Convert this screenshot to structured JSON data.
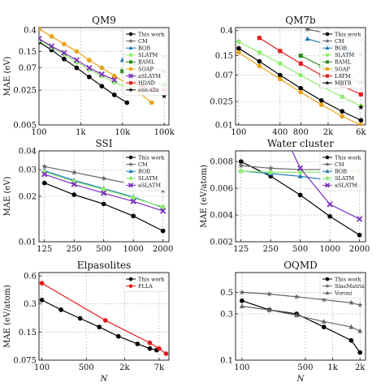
{
  "figure": {
    "shared_xlabel": "N"
  },
  "chart_data": [
    {
      "type": "line",
      "title": "QM9",
      "ylabel": "MAE (eV)",
      "xscale": "log",
      "yscale": "log",
      "xlim": [
        100,
        130000
      ],
      "ylim": [
        0.005,
        0.45
      ],
      "xticks": [
        {
          "v": 100,
          "label": "100"
        },
        {
          "v": 1000,
          "label": "1k"
        },
        {
          "v": 10000,
          "label": "10k"
        },
        {
          "v": 100000,
          "label": "100k"
        }
      ],
      "yticks": [
        {
          "v": 0.005,
          "label": "0.005"
        },
        {
          "v": 0.025,
          "label": "0.025"
        },
        {
          "v": 0.07,
          "label": "0.07"
        },
        {
          "v": 0.15,
          "label": "0.15"
        },
        {
          "v": 0.4,
          "label": "0.4"
        }
      ],
      "grid": true,
      "legend_position": "top-right",
      "series": [
        {
          "name": "This work",
          "color": "#000000",
          "marker": "circle",
          "x": [
            100,
            200,
            400,
            800,
            1600,
            3200,
            6400,
            12800
          ],
          "y": [
            0.23,
            0.16,
            0.105,
            0.07,
            0.046,
            0.03,
            0.02,
            0.014
          ]
        },
        {
          "name": "CM",
          "color": "#666666",
          "marker": "star",
          "x": [
            20000,
            50000,
            100000
          ],
          "y": [
            0.18,
            0.14,
            0.12
          ]
        },
        {
          "name": "BOB",
          "color": "#1f77b4",
          "marker": "triangle",
          "x": [
            10000,
            20000,
            50000,
            100000
          ],
          "y": [
            0.1,
            0.085,
            0.07,
            0.06
          ]
        },
        {
          "name": "SLATM",
          "color": "#90ee70",
          "marker": "circle",
          "x": [
            100,
            200,
            400,
            800,
            1600,
            3200,
            6400,
            12800
          ],
          "y": [
            0.25,
            0.18,
            0.13,
            0.09,
            0.065,
            0.048,
            0.036,
            0.028
          ]
        },
        {
          "name": "BAML",
          "color": "#2e8b22",
          "marker": "square",
          "x": [
            10000,
            20000,
            50000,
            100000
          ],
          "y": [
            0.06,
            0.048,
            0.038,
            0.032
          ]
        },
        {
          "name": "SOAP",
          "color": "#e8a317",
          "marker": "circle",
          "x": [
            100,
            200,
            400,
            800,
            1600,
            3200,
            6400,
            12800,
            25600,
            50000
          ],
          "y": [
            0.42,
            0.3,
            0.21,
            0.15,
            0.1,
            0.07,
            0.048,
            0.034,
            0.022,
            0.014
          ]
        },
        {
          "name": "aSLATM",
          "color": "#7b2fbe",
          "marker": "cross",
          "x": [
            100,
            200,
            400,
            800,
            1600,
            3200,
            6400
          ],
          "y": [
            0.27,
            0.19,
            0.14,
            0.1,
            0.07,
            0.052,
            0.04
          ]
        },
        {
          "name": "HDAD",
          "color": "#e31a1c",
          "marker": "square",
          "x": [
            20000,
            30000,
            50000,
            70000,
            100000
          ],
          "y": [
            0.035,
            0.03,
            0.026,
            0.025,
            0.025
          ]
        },
        {
          "name": "enn-s2s",
          "color": "#000000",
          "marker": "star",
          "x": [
            100000
          ],
          "y": [
            0.019
          ]
        }
      ]
    },
    {
      "type": "line",
      "title": "QM7b",
      "ylabel": "",
      "xscale": "log",
      "yscale": "log",
      "xlim": [
        90,
        7000
      ],
      "ylim": [
        0.01,
        0.45
      ],
      "xticks": [
        {
          "v": 100,
          "label": "100"
        },
        {
          "v": 400,
          "label": "400"
        },
        {
          "v": 800,
          "label": "800"
        },
        {
          "v": 2000,
          "label": "2k"
        },
        {
          "v": 6000,
          "label": "6k"
        }
      ],
      "yticks": [
        {
          "v": 0.01,
          "label": "0.01"
        },
        {
          "v": 0.025,
          "label": "0.025"
        },
        {
          "v": 0.07,
          "label": "0.07"
        },
        {
          "v": 0.15,
          "label": "0.15"
        },
        {
          "v": 0.4,
          "label": "0.4"
        }
      ],
      "grid": true,
      "legend_position": "top-right",
      "series": [
        {
          "name": "This work",
          "color": "#000000",
          "marker": "circle",
          "x": [
            100,
            200,
            400,
            800,
            1600,
            3200,
            6000
          ],
          "y": [
            0.2,
            0.12,
            0.07,
            0.042,
            0.026,
            0.017,
            0.012
          ]
        },
        {
          "name": "CM",
          "color": "#666666",
          "marker": "star",
          "x": [
            1000,
            2000,
            4000,
            6000
          ],
          "y": [
            0.42,
            0.36,
            0.31,
            0.28
          ]
        },
        {
          "name": "BOB",
          "color": "#1f77b4",
          "marker": "triangle",
          "x": [
            1000,
            2000,
            4000,
            6000
          ],
          "y": [
            0.29,
            0.23,
            0.18,
            0.16
          ]
        },
        {
          "name": "SLATM",
          "color": "#90ee70",
          "marker": "circle",
          "x": [
            100,
            200,
            400,
            800,
            1600,
            3200,
            6000
          ],
          "y": [
            0.26,
            0.17,
            0.11,
            0.07,
            0.045,
            0.03,
            0.021
          ]
        },
        {
          "name": "BAML",
          "color": "#2e8b22",
          "marker": "square",
          "x": [
            800,
            1600,
            3200,
            6000
          ],
          "y": [
            0.15,
            0.1,
            0.07,
            0.052
          ]
        },
        {
          "name": "SOAP",
          "color": "#e8a317",
          "marker": "circle",
          "x": [
            100,
            200,
            400,
            800,
            1600,
            3200,
            6000
          ],
          "y": [
            0.17,
            0.1,
            0.06,
            0.036,
            0.022,
            0.014,
            0.01
          ]
        },
        {
          "name": "LATM",
          "color": "#e31a1c",
          "marker": "square",
          "x": [
            200,
            400,
            800,
            1600,
            3200,
            6000
          ],
          "y": [
            0.3,
            0.18,
            0.11,
            0.07,
            0.046,
            0.033
          ]
        },
        {
          "name": "MBTR",
          "color": "#000000",
          "marker": "star",
          "x": [
            6000
          ],
          "y": [
            0.02
          ]
        }
      ]
    },
    {
      "type": "line",
      "title": "SSI",
      "ylabel": "MAE (eV)",
      "xscale": "log",
      "yscale": "log",
      "xlim": [
        110,
        2300
      ],
      "ylim": [
        0.01,
        0.04
      ],
      "xticks": [
        {
          "v": 125,
          "label": "125"
        },
        {
          "v": 250,
          "label": "250"
        },
        {
          "v": 500,
          "label": "500"
        },
        {
          "v": 1000,
          "label": "1000"
        },
        {
          "v": 2000,
          "label": "2000"
        }
      ],
      "yticks": [
        {
          "v": 0.01,
          "label": "0.01"
        },
        {
          "v": 0.02,
          "label": "0.02"
        },
        {
          "v": 0.03,
          "label": "0.03"
        },
        {
          "v": 0.04,
          "label": "0.04"
        }
      ],
      "grid": true,
      "legend_position": "top-right",
      "series": [
        {
          "name": "This work",
          "color": "#000000",
          "marker": "circle",
          "x": [
            125,
            250,
            500,
            1000,
            2000
          ],
          "y": [
            0.0245,
            0.0205,
            0.0178,
            0.0148,
            0.0118
          ]
        },
        {
          "name": "CM",
          "color": "#666666",
          "marker": "star",
          "x": [
            125,
            250,
            500,
            1000,
            2000
          ],
          "y": [
            0.0315,
            0.0288,
            0.0263,
            0.024,
            0.0218
          ]
        },
        {
          "name": "BOB",
          "color": "#1f77b4",
          "marker": "triangle",
          "x": [
            125,
            250,
            500,
            1000,
            2000
          ],
          "y": [
            0.0295,
            0.0255,
            0.0225,
            0.0198,
            0.0168
          ]
        },
        {
          "name": "SLATM",
          "color": "#90ee70",
          "marker": "circle",
          "x": [
            125,
            250,
            500,
            1000,
            2000
          ],
          "y": [
            0.029,
            0.025,
            0.0222,
            0.0195,
            0.017
          ]
        },
        {
          "name": "aSLATM",
          "color": "#7b2fbe",
          "marker": "cross",
          "x": [
            125,
            250,
            500,
            1000,
            2000
          ],
          "y": [
            0.028,
            0.024,
            0.021,
            0.0185,
            0.016
          ]
        }
      ]
    },
    {
      "type": "line",
      "title": "Water cluster",
      "ylabel": "MAE (eV/atom)",
      "xscale": "log",
      "yscale": "linear",
      "xlim": [
        110,
        2300
      ],
      "ylim": [
        0.002,
        0.0088
      ],
      "xticks": [
        {
          "v": 125,
          "label": "125"
        },
        {
          "v": 250,
          "label": "250"
        },
        {
          "v": 500,
          "label": "500"
        },
        {
          "v": 1000,
          "label": "1000"
        },
        {
          "v": 2000,
          "label": "2000"
        }
      ],
      "yticks": [
        {
          "v": 0.002,
          "label": "0.002"
        },
        {
          "v": 0.004,
          "label": "0.004"
        },
        {
          "v": 0.006,
          "label": "0.006"
        },
        {
          "v": 0.008,
          "label": "0.008"
        }
      ],
      "grid": true,
      "legend_position": "top-right",
      "series": [
        {
          "name": "This work",
          "color": "#000000",
          "marker": "circle",
          "x": [
            125,
            250,
            500,
            1000,
            2000
          ],
          "y": [
            0.008,
            0.0069,
            0.0055,
            0.0039,
            0.0025
          ]
        },
        {
          "name": "CM",
          "color": "#666666",
          "marker": "star",
          "x": [
            125,
            250,
            500,
            1000,
            2000
          ],
          "y": [
            0.0077,
            0.0075,
            0.0074,
            0.0074,
            0.0073
          ]
        },
        {
          "name": "BOB",
          "color": "#1f77b4",
          "marker": "triangle",
          "x": [
            125,
            250,
            500,
            1000,
            2000
          ],
          "y": [
            0.0073,
            0.0071,
            0.0069,
            0.0066,
            0.0062
          ]
        },
        {
          "name": "SLATM",
          "color": "#90ee70",
          "marker": "circle",
          "x": [
            125,
            250,
            500,
            1000,
            2000
          ],
          "y": [
            0.0073,
            0.0072,
            0.0072,
            0.0072,
            0.0072
          ]
        },
        {
          "name": "aSLATM",
          "color": "#7b2fbe",
          "marker": "cross",
          "x": [
            400,
            500,
            1000,
            2000
          ],
          "y": [
            0.009,
            0.0075,
            0.0048,
            0.0037
          ]
        }
      ]
    },
    {
      "type": "line",
      "title": "Elpasolites",
      "ylabel": "MAE (eV/atom)",
      "xlabel": "N",
      "xscale": "log",
      "yscale": "log",
      "xlim": [
        90,
        10000
      ],
      "ylim": [
        0.075,
        0.65
      ],
      "xticks": [
        {
          "v": 100,
          "label": "100"
        },
        {
          "v": 500,
          "label": "500"
        },
        {
          "v": 2000,
          "label": "2k"
        },
        {
          "v": 7000,
          "label": "7k"
        }
      ],
      "yticks": [
        {
          "v": 0.075,
          "label": "0.075"
        },
        {
          "v": 0.15,
          "label": "0.15"
        },
        {
          "v": 0.3,
          "label": "0.3"
        },
        {
          "v": 0.6,
          "label": "0.6"
        }
      ],
      "grid": true,
      "legend_position": "top-right",
      "series": [
        {
          "name": "This work",
          "color": "#000000",
          "marker": "circle",
          "x": [
            100,
            200,
            400,
            800,
            1600,
            3200,
            5000,
            6400
          ],
          "y": [
            0.33,
            0.26,
            0.21,
            0.17,
            0.135,
            0.112,
            0.1,
            0.096
          ]
        },
        {
          "name": "FLLA",
          "color": "#e31a1c",
          "marker": "circle",
          "x": [
            100,
            1000,
            5000,
            7000,
            9000
          ],
          "y": [
            0.5,
            0.2,
            0.115,
            0.1,
            0.088
          ]
        }
      ]
    },
    {
      "type": "line",
      "title": "OQMD",
      "ylabel": "",
      "xlabel": "N",
      "xscale": "log",
      "yscale": "log",
      "xlim": [
        85,
        2300
      ],
      "ylim": [
        0.1,
        0.8
      ],
      "xticks": [
        {
          "v": 100,
          "label": "100"
        },
        {
          "v": 500,
          "label": "500"
        },
        {
          "v": 1000,
          "label": "1k"
        },
        {
          "v": 2000,
          "label": "2k"
        }
      ],
      "yticks": [
        {
          "v": 0.1,
          "label": "0.1"
        },
        {
          "v": 0.3,
          "label": "0.3"
        },
        {
          "v": 0.5,
          "label": "0.5"
        }
      ],
      "grid": true,
      "legend_position": "top-right",
      "series": [
        {
          "name": "This work",
          "color": "#000000",
          "marker": "circle",
          "x": [
            100,
            200,
            400,
            800,
            1600,
            2000
          ],
          "y": [
            0.41,
            0.33,
            0.3,
            0.22,
            0.16,
            0.12
          ]
        },
        {
          "name": "SineMatrix",
          "color": "#666666",
          "marker": "star",
          "x": [
            100,
            200,
            400,
            800,
            1600,
            2000
          ],
          "y": [
            0.5,
            0.48,
            0.45,
            0.42,
            0.39,
            0.37
          ]
        },
        {
          "name": "Voroni",
          "color": "#666666",
          "marker": "triangle",
          "x": [
            100,
            200,
            400,
            800,
            1600,
            2000
          ],
          "y": [
            0.36,
            0.33,
            0.29,
            0.25,
            0.22,
            0.2
          ]
        }
      ]
    }
  ]
}
